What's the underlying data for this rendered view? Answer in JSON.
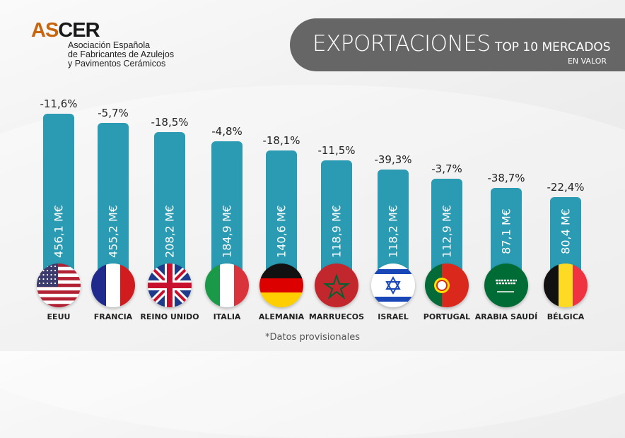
{
  "logo": {
    "name_a": "AS",
    "name_b": "CER",
    "line1": "Asociación Española",
    "line2": "de Fabricantes de Azulejos",
    "line3": "y Pavimentos Cerámicos"
  },
  "banner": {
    "title": "EXPORTACIONES",
    "subtitle": "TOP 10 MERCADOS",
    "unit": "EN VALOR"
  },
  "chart_data": {
    "type": "bar",
    "title": "EXPORTACIONES TOP 10 MERCADOS EN VALOR",
    "categories": [
      "EEUU",
      "FRANCIA",
      "REINO UNIDO",
      "ITALIA",
      "ALEMANIA",
      "MARRUECOS",
      "ISRAEL",
      "PORTUGAL",
      "ARABIA SAUDÍ",
      "BÉLGICA"
    ],
    "values": [
      456.1,
      455.2,
      208.2,
      184.9,
      140.6,
      118.9,
      118.2,
      112.9,
      87.1,
      80.4
    ],
    "value_labels": [
      "456,1 M€",
      "455,2 M€",
      "208,2 M€",
      "184,9 M€",
      "140,6 M€",
      "118,9 M€",
      "118,2 M€",
      "112,9 M€",
      "87,1 M€",
      "80,4 M€"
    ],
    "change_labels": [
      "-11,6%",
      "-5,7%",
      "-18,5%",
      "-4,8%",
      "-18,1%",
      "-11,5%",
      "-39,3%",
      "-3,7%",
      "-38,7%",
      "-22,4%"
    ],
    "flags": [
      "usa-flag",
      "france-flag",
      "uk-flag",
      "italy-flag",
      "germany-flag",
      "morocco-flag",
      "israel-flag",
      "portugal-flag",
      "saudi-arabia-flag",
      "belgium-flag"
    ],
    "bar_color": "#2a9bb3",
    "unit": "M€"
  },
  "footnote": "*Datos provisionales"
}
